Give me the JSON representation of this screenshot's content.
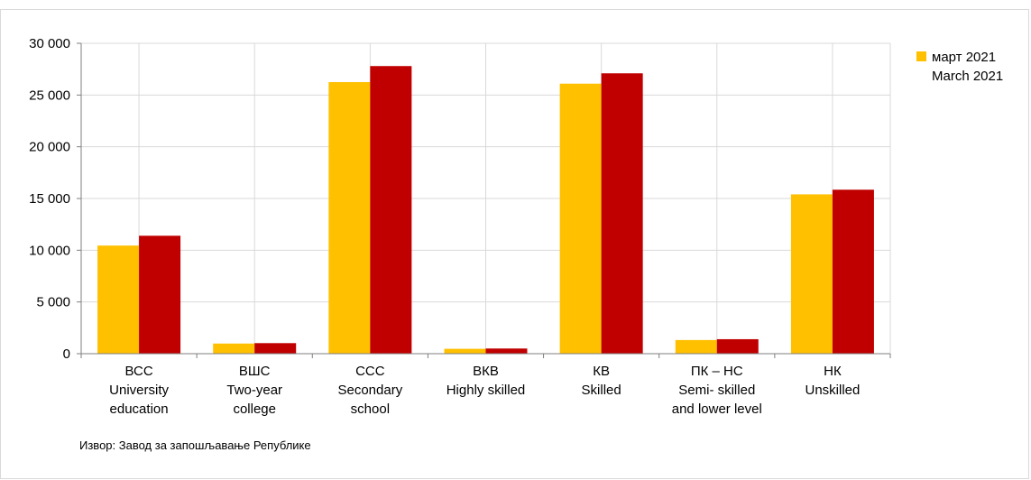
{
  "chart_data": {
    "type": "bar",
    "categories": [
      [
        "ВСС",
        "University",
        "education"
      ],
      [
        "ВШС",
        "Two-year",
        "college"
      ],
      [
        "ССС",
        "Secondary",
        "school"
      ],
      [
        "ВКВ",
        "Highly skilled"
      ],
      [
        "КВ",
        "Skilled"
      ],
      [
        "ПК – НС",
        "Semi- skilled",
        "and lower level"
      ],
      [
        "НК",
        "Unskilled"
      ]
    ],
    "series": [
      {
        "name": "март 2021\nMarch 2021",
        "color": "#FFC000",
        "values": [
          10450,
          980,
          26250,
          470,
          26100,
          1320,
          15400
        ]
      },
      {
        "color": "#C00000",
        "values": [
          11400,
          1020,
          27800,
          500,
          27100,
          1400,
          15850
        ]
      }
    ],
    "ylim": [
      0,
      30000
    ],
    "yticks": [
      0,
      5000,
      10000,
      15000,
      20000,
      25000,
      30000
    ],
    "ytick_labels": [
      "0",
      "5 000",
      "10 000",
      "15 000",
      "20 000",
      "25 000",
      "30 000"
    ],
    "grid": true,
    "legend": {
      "position": "top-right",
      "lines": [
        "март 2021",
        "March 2021"
      ]
    }
  },
  "source_note": "Извор: Завод за запошљавање Републике"
}
